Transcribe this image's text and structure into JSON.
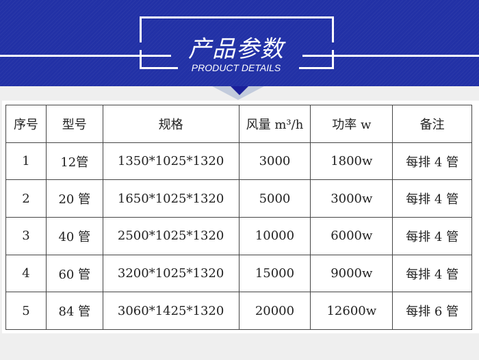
{
  "header": {
    "title": "产品参数",
    "subtitle": "PRODUCT DETAILS",
    "color": "#2231a6"
  },
  "table": {
    "columns": [
      "序号",
      "型号",
      "规格",
      "风量 m³/h",
      "功率 w",
      "备注"
    ],
    "rows": [
      [
        "1",
        "12管",
        "1350*1025*1320",
        "3000",
        "1800w",
        "每排 4 管"
      ],
      [
        "2",
        "20 管",
        "1650*1025*1320",
        "5000",
        "3000w",
        "每排 4 管"
      ],
      [
        "3",
        "40 管",
        "2500*1025*1320",
        "10000",
        "6000w",
        "每排 4 管"
      ],
      [
        "4",
        "60 管",
        "3200*1025*1320",
        "15000",
        "9000w",
        "每排 4 管"
      ],
      [
        "5",
        "84 管",
        "3060*1425*1320",
        "20000",
        "12600w",
        "每排 6 管"
      ]
    ]
  }
}
